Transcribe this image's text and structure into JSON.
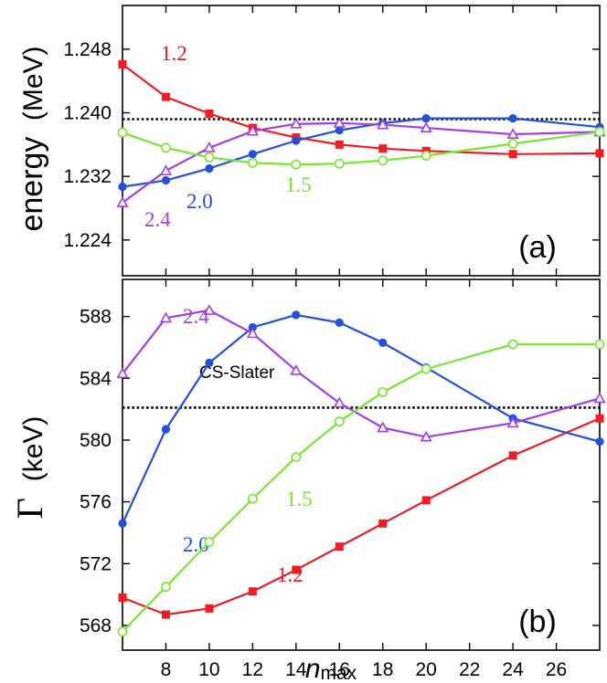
{
  "chart_data": [
    {
      "type": "line",
      "panel_label": "(a)",
      "ylabel_main": "energy",
      "ylabel_unit": "(MeV)",
      "ylim": [
        1.2195,
        1.2535
      ],
      "yticks": [
        1.224,
        1.232,
        1.24,
        1.248
      ],
      "ytick_labels": [
        "1.224",
        "1.232",
        "1.240",
        "1.248"
      ],
      "xlim": [
        6,
        28
      ],
      "xticks": [
        8,
        10,
        12,
        14,
        16,
        18,
        20,
        22,
        24,
        26
      ],
      "reference": {
        "value": 1.2392,
        "label": ""
      },
      "series": [
        {
          "name": "1.2",
          "label": "1.2",
          "color": "#ee1c25",
          "marker": "square",
          "x": [
            6,
            8,
            10,
            12,
            14,
            16,
            18,
            20,
            24,
            28
          ],
          "y": [
            1.2461,
            1.242,
            1.2399,
            1.2381,
            1.2369,
            1.236,
            1.2355,
            1.2352,
            1.2348,
            1.2349
          ]
        },
        {
          "name": "2.0",
          "label": "2.0",
          "color": "#2350d8",
          "marker": "circle",
          "x": [
            6,
            8,
            10,
            12,
            14,
            16,
            18,
            20,
            24,
            28
          ],
          "y": [
            1.2307,
            1.2315,
            1.233,
            1.2348,
            1.2365,
            1.2378,
            1.2387,
            1.2393,
            1.2393,
            1.2382
          ]
        },
        {
          "name": "2.4",
          "label": "2.4",
          "color": "#a13ee8",
          "marker": "triangle",
          "x": [
            6,
            8,
            10,
            12,
            14,
            16,
            18,
            20,
            24,
            28
          ],
          "y": [
            1.2287,
            1.2327,
            1.2356,
            1.2377,
            1.2386,
            1.2387,
            1.2385,
            1.2381,
            1.2373,
            1.2376
          ]
        },
        {
          "name": "1.5",
          "label": "1.5",
          "color": "#76e82e",
          "marker": "open-circle",
          "x": [
            6,
            8,
            10,
            12,
            14,
            16,
            18,
            20,
            24,
            28
          ],
          "y": [
            1.2375,
            1.2356,
            1.2344,
            1.2337,
            1.2335,
            1.2336,
            1.234,
            1.2346,
            1.2361,
            1.2376
          ]
        }
      ]
    },
    {
      "type": "line",
      "panel_label": "(b)",
      "ylabel_main": "Γ",
      "ylabel_unit": "(keV)",
      "xlabel": "n",
      "xlabel_sub": "max",
      "ylim": [
        566.4,
        590.4
      ],
      "yticks": [
        568,
        572,
        576,
        580,
        584,
        588
      ],
      "ytick_labels": [
        "568",
        "572",
        "576",
        "580",
        "584",
        "588"
      ],
      "xlim": [
        6,
        28
      ],
      "xticks": [
        8,
        10,
        12,
        14,
        16,
        18,
        20,
        22,
        24,
        26
      ],
      "xtick_labels": [
        "8",
        "10",
        "12",
        "14",
        "16",
        "18",
        "20",
        "22",
        "24",
        "26"
      ],
      "reference": {
        "value": 582.1,
        "label": "CS-Slater"
      },
      "series": [
        {
          "name": "1.2",
          "label": "1.2",
          "color": "#ee1c25",
          "marker": "square",
          "x": [
            6,
            8,
            10,
            12,
            14,
            16,
            18,
            20,
            24,
            28
          ],
          "y": [
            569.8,
            568.7,
            569.1,
            570.2,
            571.6,
            573.1,
            574.6,
            576.1,
            579.0,
            581.4
          ]
        },
        {
          "name": "2.0",
          "label": "2.0",
          "color": "#2350d8",
          "marker": "circle",
          "x": [
            6,
            8,
            10,
            12,
            14,
            16,
            18,
            20,
            24,
            28
          ],
          "y": [
            574.6,
            580.7,
            585.0,
            587.3,
            588.1,
            587.6,
            586.3,
            584.7,
            581.4,
            579.9
          ]
        },
        {
          "name": "2.4",
          "label": "2.4",
          "color": "#a13ee8",
          "marker": "triangle",
          "x": [
            6,
            8,
            10,
            12,
            14,
            16,
            18,
            20,
            24,
            28
          ],
          "y": [
            584.3,
            587.9,
            588.4,
            586.9,
            584.5,
            582.4,
            580.8,
            580.2,
            581.1,
            582.7
          ]
        },
        {
          "name": "1.5",
          "label": "1.5",
          "color": "#76e82e",
          "marker": "open-circle",
          "x": [
            6,
            8,
            10,
            12,
            14,
            16,
            18,
            20,
            24,
            28
          ],
          "y": [
            567.6,
            570.5,
            573.4,
            576.2,
            578.9,
            581.2,
            583.1,
            584.6,
            586.2,
            586.2
          ]
        }
      ]
    }
  ]
}
